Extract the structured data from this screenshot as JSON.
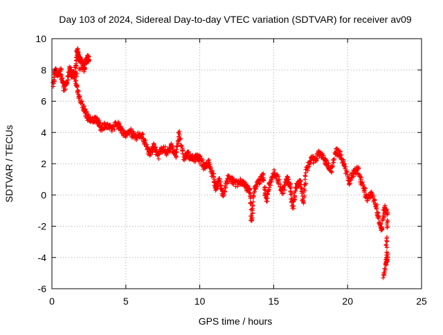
{
  "chart_data": {
    "type": "scatter",
    "title": "Day 103 of 2024, Sidereal Day-to-day VTEC variation (SDTVAR) for receiver av09",
    "xlabel": "GPS time / hours",
    "ylabel": "SDTVAR / TECUs",
    "xlim": [
      0,
      25
    ],
    "ylim": [
      -6,
      10
    ],
    "xticks": [
      0,
      5,
      10,
      15,
      20,
      25
    ],
    "yticks": [
      -6,
      -4,
      -2,
      0,
      2,
      4,
      6,
      8,
      10
    ],
    "grid": true,
    "marker": "+",
    "color": "#ff0000",
    "series": [
      {
        "name": "SDTVAR",
        "trace": [
          [
            0.1,
            7.0
          ],
          [
            0.2,
            8.0
          ],
          [
            0.4,
            7.7
          ],
          [
            0.6,
            7.9
          ],
          [
            0.8,
            6.8
          ],
          [
            1.0,
            7.2
          ],
          [
            1.2,
            8.1
          ],
          [
            1.4,
            7.6
          ],
          [
            1.6,
            8.0
          ],
          [
            1.7,
            9.3
          ],
          [
            1.8,
            8.8
          ],
          [
            2.0,
            8.6
          ],
          [
            2.2,
            8.1
          ],
          [
            2.4,
            8.8
          ],
          [
            2.5,
            8.7
          ],
          [
            1.5,
            7.6
          ],
          [
            1.8,
            6.5
          ],
          [
            2.1,
            5.6
          ],
          [
            2.4,
            5.0
          ],
          [
            2.7,
            4.7
          ],
          [
            3.0,
            4.9
          ],
          [
            3.3,
            4.3
          ],
          [
            3.6,
            4.5
          ],
          [
            4.0,
            4.2
          ],
          [
            4.4,
            4.6
          ],
          [
            4.7,
            4.2
          ],
          [
            5.0,
            3.8
          ],
          [
            5.3,
            4.1
          ],
          [
            5.6,
            3.7
          ],
          [
            6.0,
            3.9
          ],
          [
            6.3,
            3.4
          ],
          [
            6.6,
            2.6
          ],
          [
            6.9,
            3.1
          ],
          [
            7.2,
            2.5
          ],
          [
            7.5,
            3.0
          ],
          [
            7.8,
            2.7
          ],
          [
            8.1,
            3.1
          ],
          [
            8.4,
            2.5
          ],
          [
            8.6,
            4.0
          ],
          [
            8.9,
            2.4
          ],
          [
            9.2,
            2.6
          ],
          [
            9.5,
            2.3
          ],
          [
            9.8,
            2.4
          ],
          [
            10.0,
            2.3
          ],
          [
            10.3,
            1.8
          ],
          [
            10.6,
            2.1
          ],
          [
            10.9,
            1.2
          ],
          [
            11.1,
            0.4
          ],
          [
            11.3,
            0.9
          ],
          [
            11.6,
            0.0
          ],
          [
            11.9,
            1.1
          ],
          [
            12.2,
            0.9
          ],
          [
            12.5,
            0.7
          ],
          [
            12.8,
            0.9
          ],
          [
            13.1,
            0.5
          ],
          [
            13.4,
            0.3
          ],
          [
            13.5,
            -1.8
          ],
          [
            13.7,
            0.4
          ],
          [
            14.0,
            0.9
          ],
          [
            14.3,
            1.2
          ],
          [
            14.5,
            -0.4
          ],
          [
            14.7,
            0.6
          ],
          [
            15.0,
            1.5
          ],
          [
            15.3,
            1.0
          ],
          [
            15.6,
            0.2
          ],
          [
            15.9,
            1.0
          ],
          [
            16.1,
            0.6
          ],
          [
            16.3,
            -0.8
          ],
          [
            16.5,
            0.5
          ],
          [
            16.8,
            0.9
          ],
          [
            17.0,
            -0.5
          ],
          [
            17.2,
            1.5
          ],
          [
            17.5,
            2.3
          ],
          [
            17.8,
            2.2
          ],
          [
            18.1,
            2.7
          ],
          [
            18.3,
            2.4
          ],
          [
            18.6,
            2.0
          ],
          [
            18.9,
            1.6
          ],
          [
            19.2,
            2.8
          ],
          [
            19.5,
            2.6
          ],
          [
            19.8,
            1.9
          ],
          [
            20.1,
            0.8
          ],
          [
            20.4,
            1.5
          ],
          [
            20.7,
            1.6
          ],
          [
            21.0,
            0.7
          ],
          [
            21.3,
            -0.2
          ],
          [
            21.6,
            0.1
          ],
          [
            21.9,
            -0.6
          ],
          [
            22.1,
            -1.5
          ],
          [
            22.3,
            -2.3
          ],
          [
            22.5,
            -0.7
          ],
          [
            22.7,
            -1.4
          ],
          [
            22.6,
            -4.3
          ],
          [
            22.7,
            -3.9
          ],
          [
            22.4,
            -5.3
          ]
        ]
      }
    ]
  }
}
